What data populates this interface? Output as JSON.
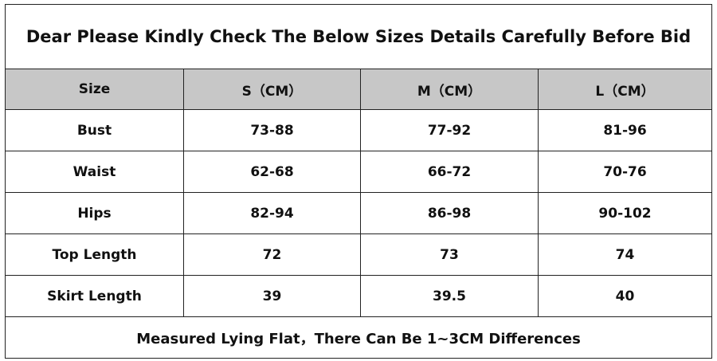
{
  "title": "Dear Please Kindly Check The Below Sizes Details Carefully Before Bid",
  "table": {
    "header": [
      "Size",
      "S（CM）",
      "M（CM）",
      "L（CM）"
    ],
    "rows": [
      [
        "Bust",
        "73-88",
        "77-92",
        "81-96"
      ],
      [
        "Waist",
        "62-68",
        "66-72",
        "70-76"
      ],
      [
        "Hips",
        "82-94",
        "86-98",
        "90-102"
      ],
      [
        "Top Length",
        "72",
        "73",
        "74"
      ],
      [
        "Skirt Length",
        "39",
        "39.5",
        "40"
      ]
    ]
  },
  "footer": "Measured Lying Flat，There Can Be 1~3CM Differences"
}
